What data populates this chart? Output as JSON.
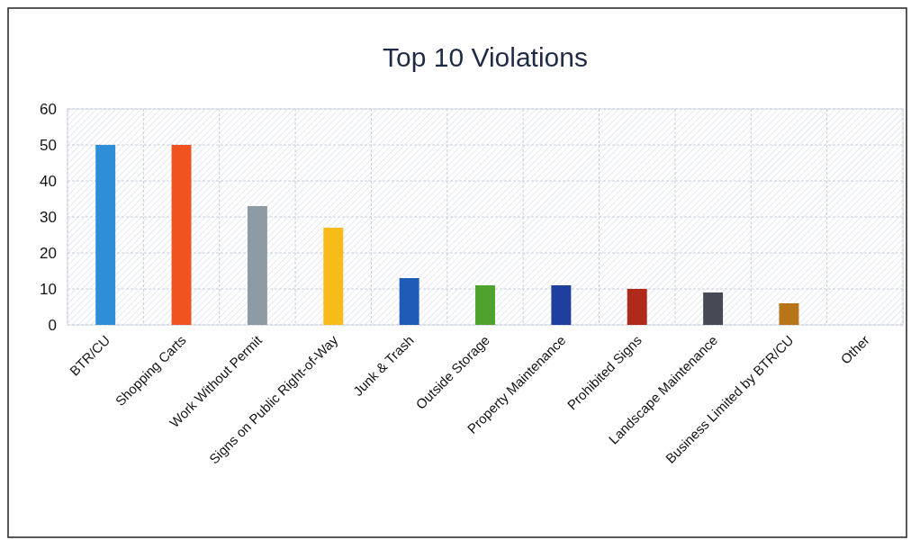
{
  "chart_data": {
    "type": "bar",
    "title": "Top 10 Violations",
    "categories": [
      "BTR/CU",
      "Shopping Carts",
      "Work Without Permit",
      "Signs on Public Right-of-Way",
      "Junk & Trash",
      "Outside Storage",
      "Property Maintenance",
      "Prohibited Signs",
      "Landscape Maintenance",
      "Business Limited by BTR/CU",
      "Other"
    ],
    "values": [
      50,
      50,
      33,
      27,
      13,
      11,
      11,
      10,
      9,
      6,
      0
    ],
    "colors": [
      "#2e8fd8",
      "#f0531f",
      "#8e9ba5",
      "#f7bb1a",
      "#1f5cb8",
      "#4ea22e",
      "#1e3f9e",
      "#b02a1c",
      "#454a55",
      "#b87518",
      "#888888"
    ],
    "ylim": [
      0,
      60
    ],
    "yticks": [
      0,
      10,
      20,
      30,
      40,
      50,
      60
    ],
    "grid": true
  }
}
